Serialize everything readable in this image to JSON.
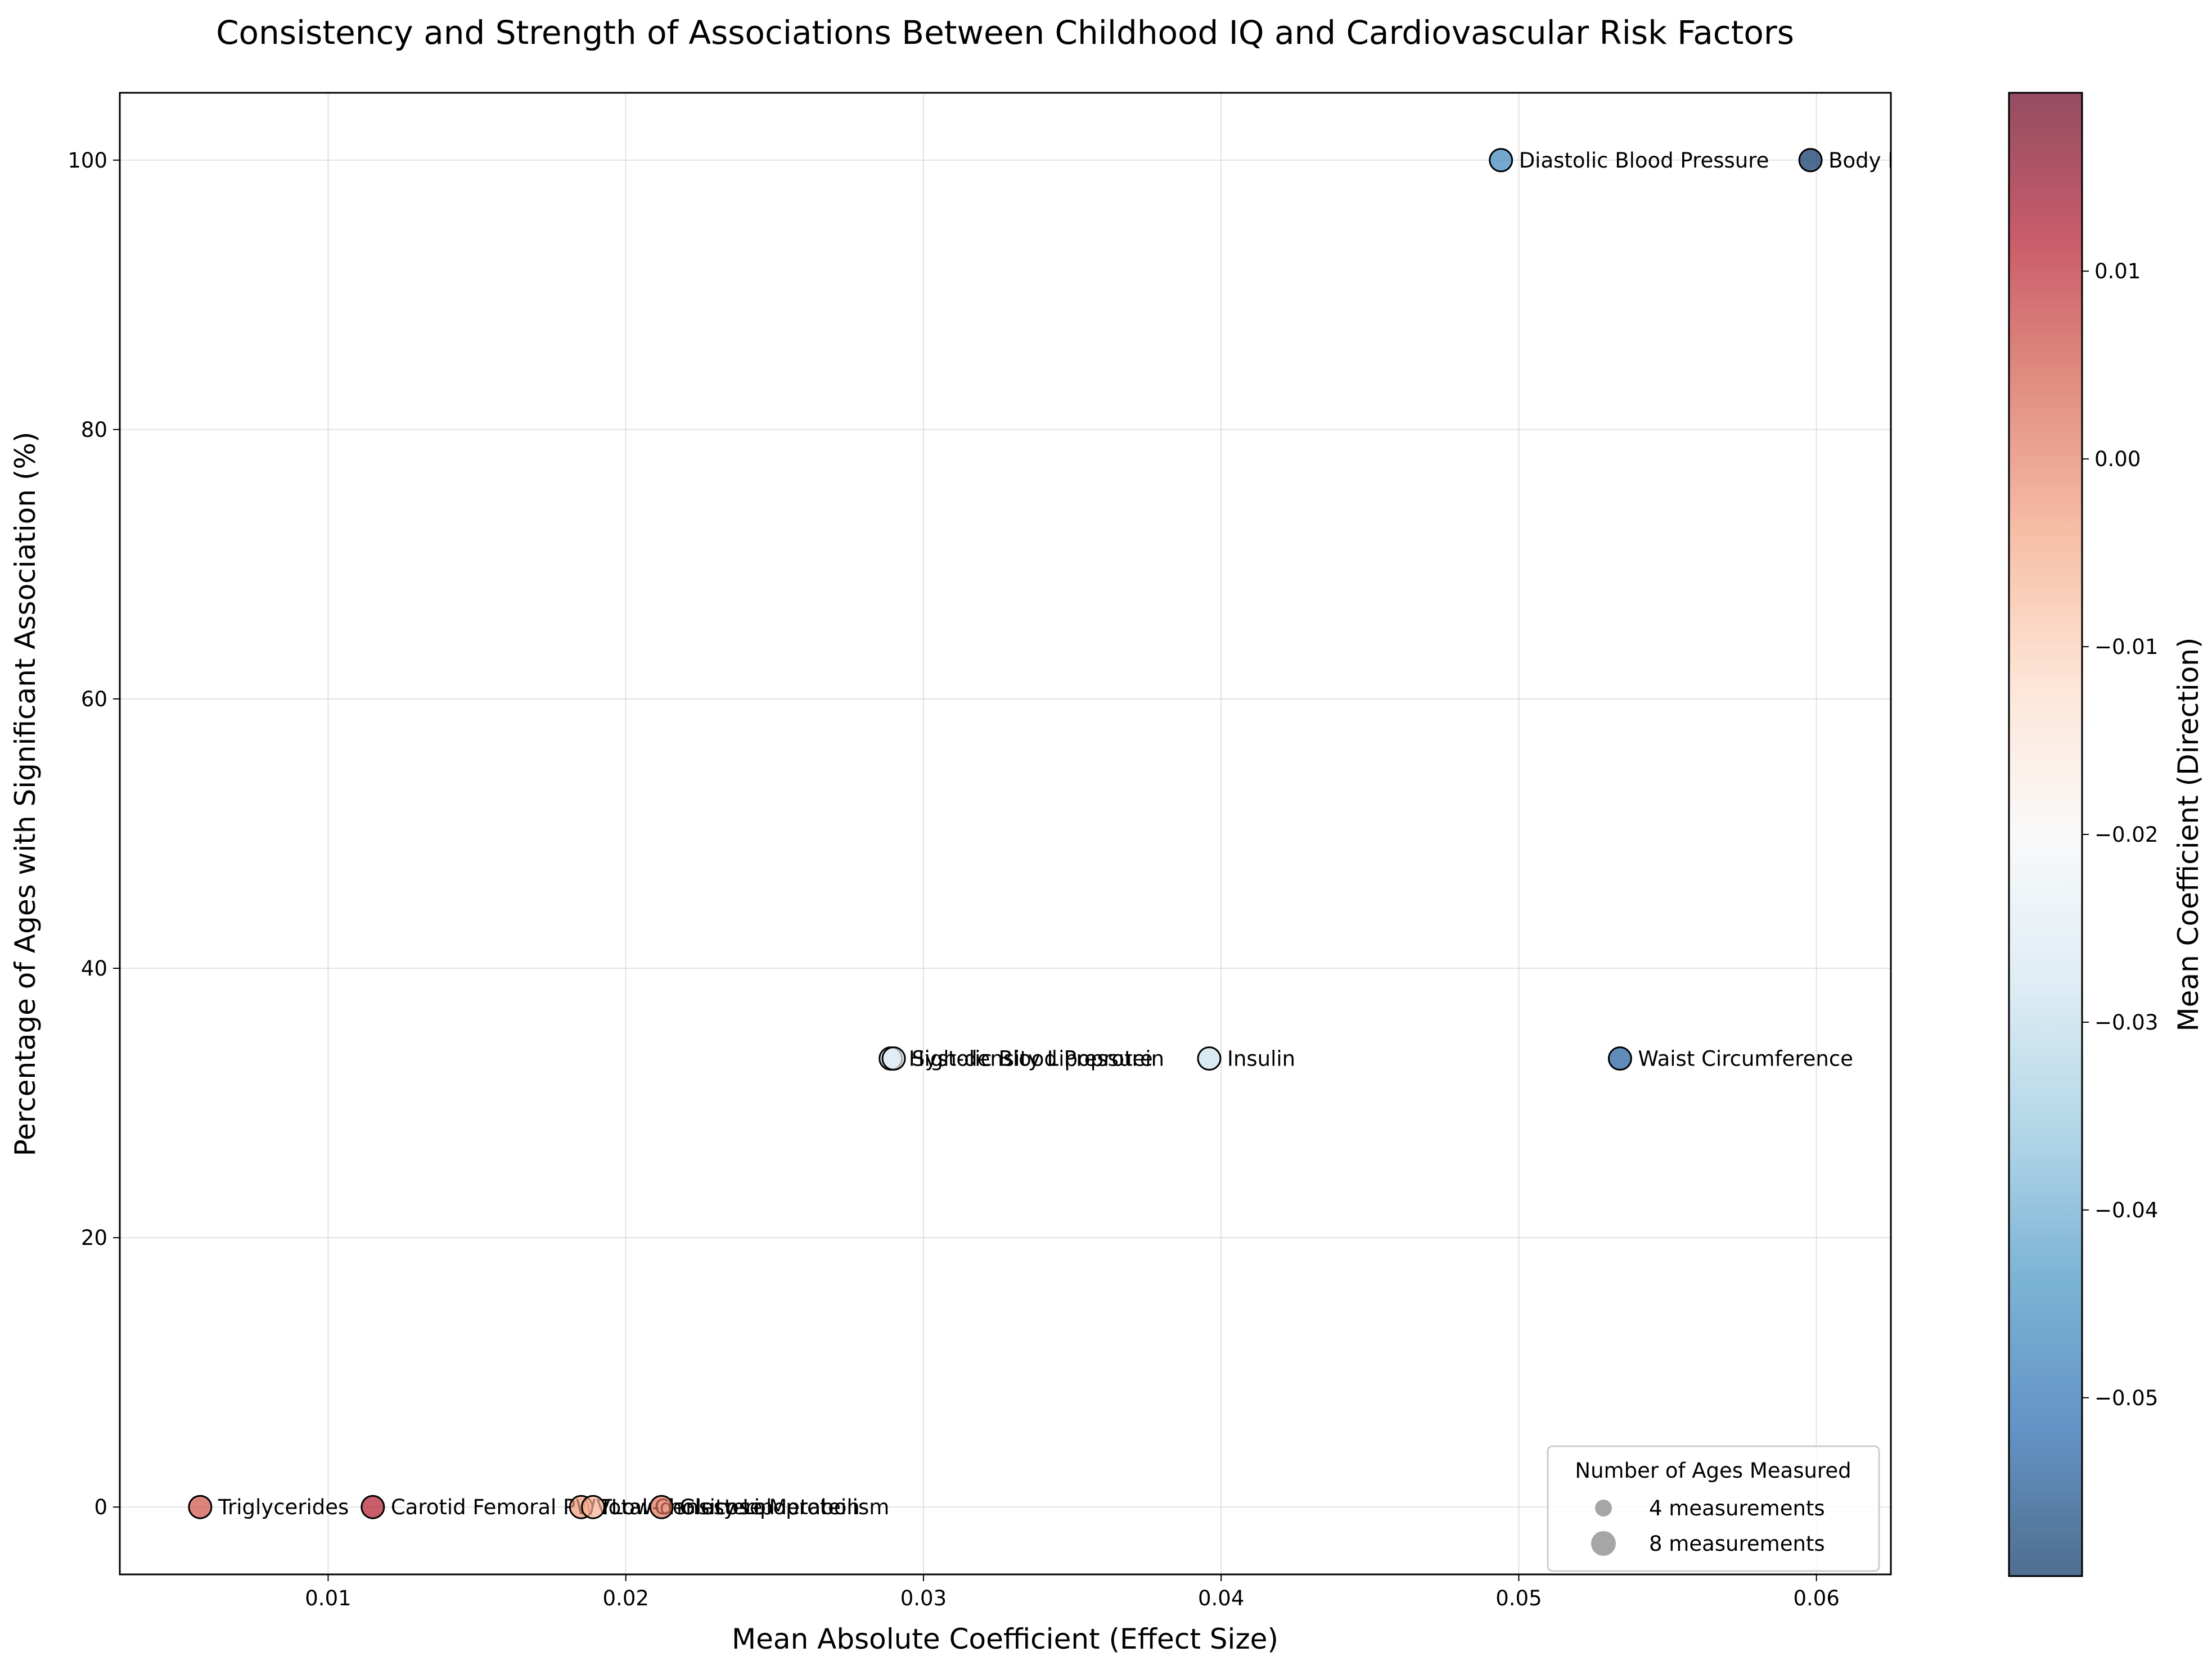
{
  "chart_data": {
    "type": "scatter",
    "title": "Consistency and Strength of Associations Between Childhood IQ and Cardiovascular Risk Factors",
    "xlabel": "Mean Absolute Coefficient (Effect Size)",
    "ylabel": "Percentage of Ages with Significant Association (%)",
    "xlim": [
      0.003,
      0.0625
    ],
    "ylim": [
      -5,
      105
    ],
    "x_ticks": [
      0.01,
      0.02,
      0.03,
      0.04,
      0.05,
      0.06
    ],
    "x_tick_labels": [
      "0.01",
      "0.02",
      "0.03",
      "0.04",
      "0.05",
      "0.06"
    ],
    "y_ticks": [
      0,
      20,
      40,
      60,
      80,
      100
    ],
    "y_tick_labels": [
      "0",
      "20",
      "40",
      "60",
      "80",
      "100"
    ],
    "grid": true,
    "colorbar": {
      "label": "Mean Coefficient (Direction)",
      "colormap": "RdBu_r",
      "range": [
        -0.0595,
        0.0195
      ],
      "ticks": [
        -0.05,
        -0.04,
        -0.03,
        -0.02,
        -0.01,
        0.0,
        0.01
      ],
      "tick_labels": [
        "−0.05",
        "−0.04",
        "−0.03",
        "−0.02",
        "−0.01",
        "0.00",
        "0.01"
      ]
    },
    "legend": {
      "title": "Number of Ages Measured",
      "placement": "lower-right",
      "entries": [
        {
          "label": "4 measurements",
          "size": 4
        },
        {
          "label": "8 measurements",
          "size": 8
        }
      ]
    },
    "points": [
      {
        "label": "Diastolic Blood Pressure",
        "x": 0.0494,
        "y": 100,
        "c": -0.0465
      },
      {
        "label": "Body Mass Index",
        "x": 0.0598,
        "y": 100,
        "c": -0.0595
      },
      {
        "label": "Waist Circumference",
        "x": 0.0534,
        "y": 33.3,
        "c": -0.0534
      },
      {
        "label": "Insulin",
        "x": 0.0396,
        "y": 33.3,
        "c": -0.029
      },
      {
        "label": "High-density Lipoprotein",
        "x": 0.0289,
        "y": 33.3,
        "c": -0.0289
      },
      {
        "label": "Systolic Blood Pressure",
        "x": 0.029,
        "y": 33.3,
        "c": -0.024
      },
      {
        "label": "Triglycerides",
        "x": 0.0057,
        "y": 0,
        "c": 0.0057
      },
      {
        "label": "Carotid Femoral PWV",
        "x": 0.0115,
        "y": 0,
        "c": 0.0115
      },
      {
        "label": "Total Cholesterol",
        "x": 0.0185,
        "y": 0,
        "c": -0.003
      },
      {
        "label": "Low-density Lipoprotein",
        "x": 0.0189,
        "y": 0,
        "c": -0.006
      },
      {
        "label": "Glucose Metabolism",
        "x": 0.0212,
        "y": 0,
        "c": 0.0015
      }
    ]
  }
}
